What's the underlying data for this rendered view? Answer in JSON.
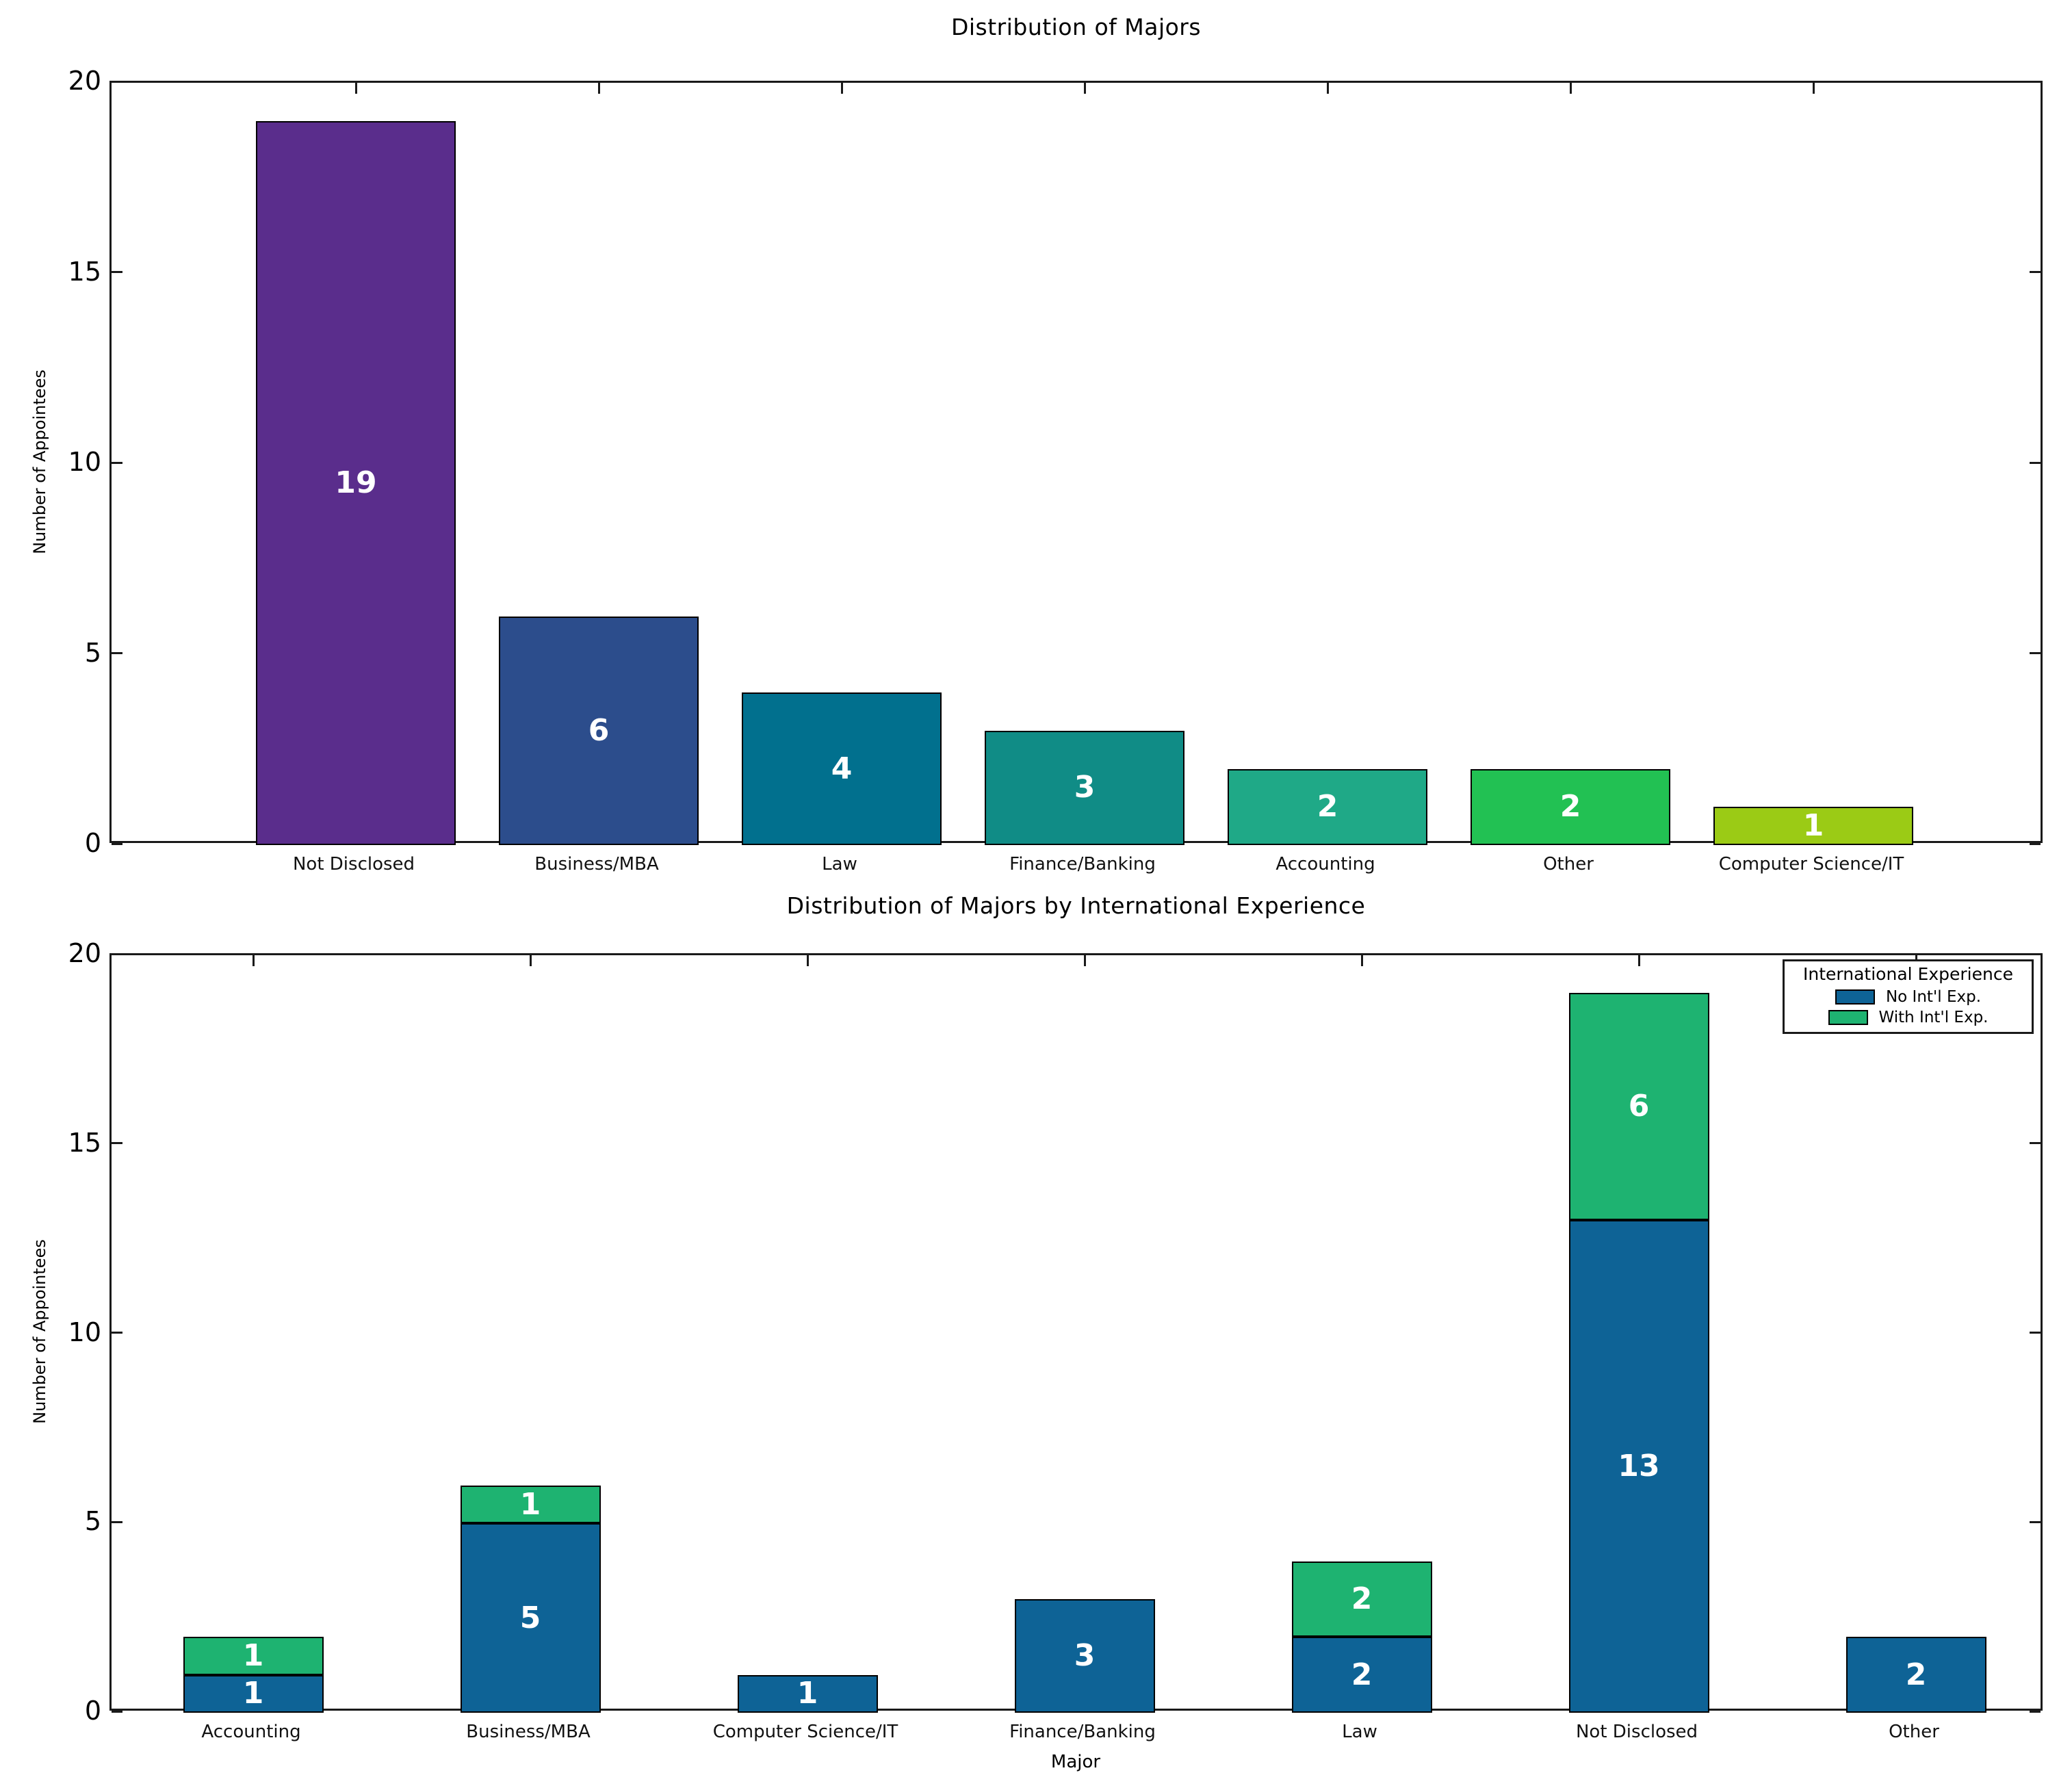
{
  "figure": {
    "background": "#ffffff"
  },
  "chart_data": [
    {
      "type": "bar",
      "title": "Distribution of Majors",
      "xlabel": "",
      "ylabel": "Number of Appointees",
      "ylim": [
        0,
        20
      ],
      "yticks": [
        0,
        5,
        10,
        15,
        20
      ],
      "grid": false,
      "categories": [
        "Not Disclosed",
        "Business/MBA",
        "Law",
        "Finance/Banking",
        "Accounting",
        "Other",
        "Computer Science/IT"
      ],
      "values": [
        19,
        6,
        4,
        3,
        2,
        2,
        1
      ],
      "bar_colors": [
        "#5a2d8c",
        "#2c4d8c",
        "#01708e",
        "#108c86",
        "#1fa987",
        "#22c153",
        "#9bcb15"
      ],
      "bar_edge_color": "#000000",
      "value_label_color": "#ffffff"
    },
    {
      "type": "bar",
      "stacked": true,
      "title": "Distribution of Majors by International Experience",
      "xlabel": "Major",
      "ylabel": "Number of Appointees",
      "ylim": [
        0,
        20
      ],
      "yticks": [
        0,
        5,
        10,
        15,
        20
      ],
      "grid": false,
      "categories": [
        "Accounting",
        "Business/MBA",
        "Computer Science/IT",
        "Finance/Banking",
        "Law",
        "Not Disclosed",
        "Other"
      ],
      "series": [
        {
          "name": "No Int'l Exp.",
          "color": "#0e6396",
          "values": [
            1,
            5,
            1,
            3,
            2,
            13,
            2
          ]
        },
        {
          "name": "With Int'l Exp.",
          "color": "#1eb371",
          "values": [
            1,
            1,
            0,
            0,
            2,
            6,
            0
          ]
        }
      ],
      "legend": {
        "title": "International Experience",
        "position": "upper right"
      },
      "bar_edge_color": "#000000",
      "value_label_color": "#ffffff"
    }
  ]
}
